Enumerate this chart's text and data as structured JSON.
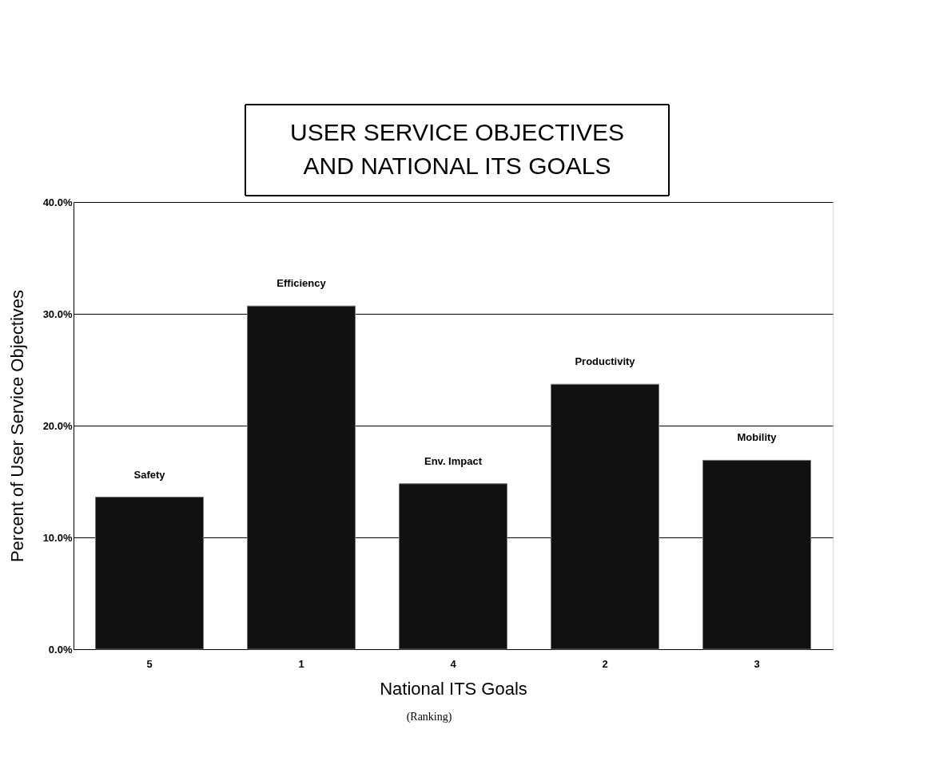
{
  "chart_data": {
    "type": "bar",
    "title": "USER SERVICE OBJECTIVES\nAND NATIONAL ITS GOALS",
    "xlabel": "National ITS Goals",
    "ylabel": "Percent of User Service Objectives",
    "categories": [
      "5",
      "1",
      "4",
      "2",
      "3"
    ],
    "values": [
      13.6,
      30.7,
      14.8,
      23.7,
      16.9
    ],
    "color": "#111111",
    "ylim": [
      0,
      40
    ],
    "yticks": [
      {
        "value": 0,
        "label": "0.0%"
      },
      {
        "value": 10,
        "label": "10.0%"
      },
      {
        "value": 20,
        "label": "20.0%"
      },
      {
        "value": 30,
        "label": "30.0%"
      },
      {
        "value": 40,
        "label": "40.0%"
      }
    ],
    "grid": "y",
    "annotations": [
      {
        "text": "Safety",
        "x": "5",
        "y": 13.6
      },
      {
        "text": "Efficiency",
        "x": "1",
        "y": 30.7
      },
      {
        "text": "Env. Impact",
        "x": "4",
        "y": 14.8
      },
      {
        "text": "Productivity",
        "x": "2",
        "y": 23.7
      },
      {
        "text": "Mobility",
        "x": "3",
        "y": 16.9
      },
      "(Ranking)"
    ]
  }
}
